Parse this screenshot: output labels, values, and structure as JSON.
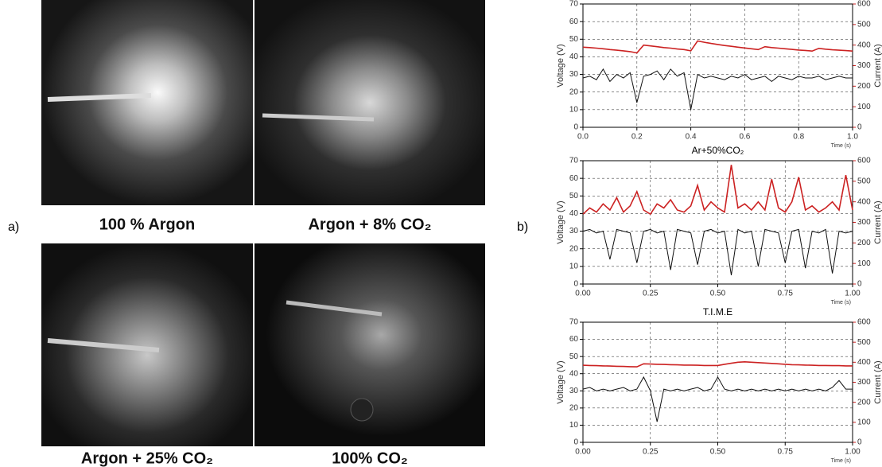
{
  "panels": {
    "a": {
      "label": "a)",
      "captions": [
        "100 % Argon",
        "Argon + 8% CO₂",
        "Argon + 25% CO₂",
        "100% CO₂"
      ]
    },
    "b": {
      "label": "b)"
    }
  },
  "chart_data": [
    {
      "type": "line",
      "x": [
        0,
        0.025,
        0.05,
        0.075,
        0.1,
        0.125,
        0.15,
        0.175,
        0.2,
        0.225,
        0.25,
        0.275,
        0.3,
        0.325,
        0.35,
        0.375,
        0.4,
        0.425,
        0.45,
        0.475,
        0.5,
        0.525,
        0.55,
        0.575,
        0.6,
        0.625,
        0.65,
        0.675,
        0.7,
        0.725,
        0.75,
        0.775,
        0.8,
        0.825,
        0.85,
        0.875,
        0.9,
        0.925,
        0.95,
        0.975,
        1
      ],
      "xlim": [
        0,
        1
      ],
      "xticks": [
        {
          "value": 0,
          "label": "0.0"
        },
        0.2,
        0.4,
        0.6,
        0.8,
        {
          "value": 1,
          "label": "1.0"
        }
      ],
      "ylim": [
        0,
        70
      ],
      "yticks": [
        0,
        10,
        20,
        30,
        40,
        50,
        60,
        70
      ],
      "y2lim": [
        0,
        600
      ],
      "y2ticks": [
        0,
        100,
        200,
        300,
        400,
        500,
        600
      ],
      "xlabel": "Time (s)",
      "ylabel": "Voltage (V)",
      "y2label": "Current (A)",
      "grid": true,
      "series": [
        {
          "color": "#111111",
          "values": [
            28,
            29,
            27,
            33,
            26,
            30,
            28,
            31,
            14,
            29,
            30,
            32,
            27,
            33,
            29,
            31,
            10,
            30,
            28,
            29,
            28,
            27,
            29,
            28,
            30,
            27,
            28,
            29,
            26,
            29,
            28,
            27,
            29,
            28,
            28,
            29,
            27,
            28,
            29,
            28,
            28
          ]
        },
        {
          "color": "#cc2222",
          "axis": "y2",
          "values": [
            390,
            388,
            385,
            382,
            378,
            375,
            372,
            368,
            362,
            400,
            396,
            392,
            388,
            385,
            381,
            378,
            372,
            420,
            414,
            408,
            403,
            398,
            394,
            390,
            386,
            382,
            378,
            392,
            388,
            385,
            382,
            379,
            376,
            374,
            371,
            384,
            380,
            377,
            375,
            373,
            371
          ]
        }
      ]
    },
    {
      "type": "line",
      "title": "Ar+50%CO₂",
      "x": [
        0,
        0.025,
        0.05,
        0.075,
        0.1,
        0.125,
        0.15,
        0.175,
        0.2,
        0.225,
        0.25,
        0.275,
        0.3,
        0.325,
        0.35,
        0.375,
        0.4,
        0.425,
        0.45,
        0.475,
        0.5,
        0.525,
        0.55,
        0.575,
        0.6,
        0.625,
        0.65,
        0.675,
        0.7,
        0.725,
        0.75,
        0.775,
        0.8,
        0.825,
        0.85,
        0.875,
        0.9,
        0.925,
        0.95,
        0.975,
        1
      ],
      "xlim": [
        0,
        1
      ],
      "xticks": [
        {
          "value": 0,
          "label": "0.00"
        },
        0.25,
        {
          "value": 0.5,
          "label": "0.50"
        },
        0.75,
        {
          "value": 1,
          "label": "1.00"
        }
      ],
      "ylim": [
        0,
        70
      ],
      "yticks": [
        0,
        10,
        20,
        30,
        40,
        50,
        60,
        70
      ],
      "y2lim": [
        0,
        600
      ],
      "y2ticks": [
        0,
        100,
        200,
        300,
        400,
        500,
        600
      ],
      "xlabel": "Time (s)",
      "ylabel": "Voltage (V)",
      "y2label": "Current (A)",
      "grid": true,
      "series": [
        {
          "color": "#111111",
          "values": [
            30,
            31,
            29,
            30,
            14,
            31,
            30,
            29,
            12,
            30,
            31,
            29,
            30,
            8,
            31,
            30,
            29,
            11,
            30,
            31,
            29,
            30,
            5,
            31,
            29,
            30,
            10,
            31,
            30,
            29,
            12,
            30,
            31,
            9,
            30,
            29,
            31,
            6,
            30,
            29,
            30
          ]
        },
        {
          "color": "#cc2222",
          "axis": "y2",
          "values": [
            340,
            370,
            350,
            390,
            360,
            420,
            350,
            380,
            450,
            360,
            340,
            390,
            370,
            410,
            360,
            350,
            380,
            480,
            360,
            400,
            370,
            350,
            580,
            370,
            390,
            360,
            400,
            360,
            510,
            370,
            350,
            400,
            520,
            360,
            380,
            350,
            370,
            400,
            360,
            530,
            360
          ]
        }
      ]
    },
    {
      "type": "line",
      "title": "T.I.M.E",
      "x": [
        0,
        0.025,
        0.05,
        0.075,
        0.1,
        0.125,
        0.15,
        0.175,
        0.2,
        0.225,
        0.25,
        0.275,
        0.3,
        0.325,
        0.35,
        0.375,
        0.4,
        0.425,
        0.45,
        0.475,
        0.5,
        0.525,
        0.55,
        0.575,
        0.6,
        0.625,
        0.65,
        0.675,
        0.7,
        0.725,
        0.75,
        0.775,
        0.8,
        0.825,
        0.85,
        0.875,
        0.9,
        0.925,
        0.95,
        0.975,
        1
      ],
      "xlim": [
        0,
        1
      ],
      "xticks": [
        {
          "value": 0,
          "label": "0.00"
        },
        0.25,
        {
          "value": 0.5,
          "label": "0.50"
        },
        0.75,
        {
          "value": 1,
          "label": "1.00"
        }
      ],
      "ylim": [
        0,
        70
      ],
      "yticks": [
        0,
        10,
        20,
        30,
        40,
        50,
        60,
        70
      ],
      "y2lim": [
        0,
        600
      ],
      "y2ticks": [
        0,
        100,
        200,
        300,
        400,
        500,
        600
      ],
      "xlabel": "Time (s)",
      "ylabel": "Voltage (V)",
      "y2label": "Current (A)",
      "grid": true,
      "series": [
        {
          "color": "#111111",
          "values": [
            31,
            32,
            30,
            31,
            30,
            31,
            32,
            30,
            31,
            38,
            30,
            12,
            31,
            30,
            31,
            30,
            31,
            32,
            30,
            31,
            38,
            31,
            30,
            31,
            30,
            31,
            30,
            31,
            30,
            31,
            30,
            31,
            30,
            31,
            30,
            31,
            30,
            32,
            36,
            31,
            31
          ]
        },
        {
          "color": "#cc2222",
          "axis": "y2",
          "values": [
            385,
            384,
            383,
            382,
            381,
            380,
            379,
            378,
            377,
            392,
            391,
            390,
            389,
            388,
            387,
            386,
            386,
            385,
            384,
            384,
            384,
            390,
            395,
            400,
            402,
            400,
            398,
            396,
            394,
            392,
            390,
            388,
            387,
            386,
            385,
            384,
            384,
            383,
            383,
            382,
            382
          ]
        }
      ]
    }
  ]
}
